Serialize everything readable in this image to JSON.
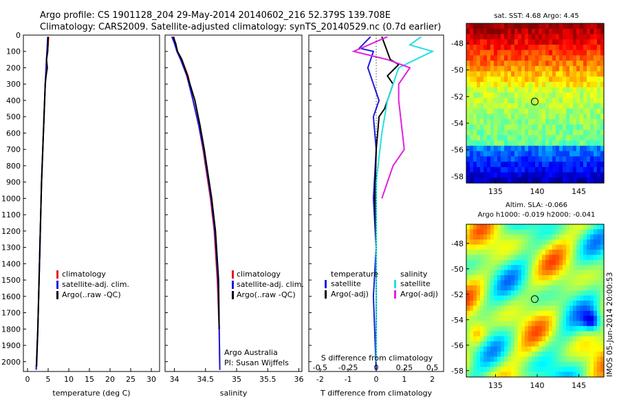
{
  "header": {
    "line1": "Argo profile: CS 1901128_204 29-May-2014 20140602_216 52.379S 139.708E",
    "line2": "Climatology: CARS2009. Satellite-adjusted climatology: synTS_20140529.nc (0.7d earlier)"
  },
  "colors": {
    "climatology": "#e8141e",
    "satellite": "#1a1ae0",
    "argo": "#000000",
    "satellite_salinity": "#22e0e0",
    "argo_salinity": "#e020e0"
  },
  "chart_data": [
    {
      "type": "line",
      "id": "temperature",
      "xlabel": "temperature (deg C)",
      "ylabel": "",
      "xlim": [
        -1,
        32
      ],
      "ylim": [
        2060,
        0
      ],
      "xticks": [
        0,
        5,
        10,
        15,
        20,
        25,
        30
      ],
      "yticks": [
        0,
        100,
        200,
        300,
        400,
        500,
        600,
        700,
        800,
        900,
        1000,
        1100,
        1200,
        1300,
        1400,
        1500,
        1600,
        1700,
        1800,
        1900,
        2000
      ],
      "legend": [
        "climatology",
        "satellite-adj. clim.",
        "Argo(..raw -QC)"
      ],
      "series": [
        {
          "name": "climatology",
          "color": "#e8141e",
          "x": [
            5.1,
            5.0,
            4.8,
            4.6,
            4.5,
            4.3,
            4.0,
            3.7,
            3.4,
            3.1,
            2.8,
            2.5,
            2.1
          ],
          "y": [
            10,
            60,
            100,
            150,
            200,
            300,
            500,
            700,
            900,
            1200,
            1500,
            1800,
            2050
          ]
        },
        {
          "name": "satellite-adj. clim.",
          "color": "#1a1ae0",
          "x": [
            4.9,
            4.8,
            4.7,
            4.6,
            4.5,
            4.3,
            4.0,
            3.7,
            3.4,
            3.1,
            2.8,
            2.5,
            2.1
          ],
          "y": [
            10,
            60,
            100,
            150,
            200,
            300,
            500,
            700,
            900,
            1200,
            1500,
            1800,
            2050
          ]
        },
        {
          "name": "Argo(..raw -QC)",
          "color": "#000000",
          "x": [
            5.0,
            4.95,
            4.9,
            4.6,
            4.8,
            4.5,
            4.3,
            4.0,
            3.7,
            3.4,
            3.1,
            2.8,
            2.5,
            2.2
          ],
          "y": [
            10,
            50,
            100,
            150,
            200,
            250,
            300,
            500,
            700,
            900,
            1200,
            1500,
            1800,
            2030
          ]
        }
      ]
    },
    {
      "type": "line",
      "id": "salinity",
      "xlabel": "salinity",
      "ylabel": "",
      "xlim": [
        33.85,
        36.05
      ],
      "ylim": [
        2060,
        0
      ],
      "xticks": [
        34,
        34.5,
        35,
        35.5,
        36
      ],
      "legend": [
        "climatology",
        "satellite-adj. clim.",
        "Argo(..raw -QC)"
      ],
      "annotation": [
        "Argo Australia",
        "PI: Susan Wijffels"
      ],
      "series": [
        {
          "name": "climatology",
          "color": "#e8141e",
          "x": [
            33.99,
            34.01,
            34.05,
            34.12,
            34.22,
            34.3,
            34.39,
            34.46,
            34.52,
            34.58,
            34.64,
            34.69,
            34.72,
            34.73
          ],
          "y": [
            10,
            50,
            100,
            150,
            250,
            400,
            550,
            700,
            850,
            1000,
            1200,
            1500,
            1800,
            2050
          ]
        },
        {
          "name": "satellite-adj. clim.",
          "color": "#1a1ae0",
          "x": [
            33.96,
            34.0,
            34.04,
            34.1,
            34.2,
            34.3,
            34.39,
            34.47,
            34.53,
            34.59,
            34.65,
            34.7,
            34.72,
            34.73
          ],
          "y": [
            10,
            50,
            100,
            150,
            250,
            400,
            550,
            700,
            850,
            1000,
            1200,
            1500,
            1800,
            2050
          ]
        },
        {
          "name": "Argo(..raw -QC)",
          "color": "#000000",
          "x": [
            33.98,
            34.02,
            34.05,
            34.12,
            34.21,
            34.33,
            34.41,
            34.48,
            34.54,
            34.6,
            34.66,
            34.71,
            34.72
          ],
          "y": [
            10,
            50,
            100,
            150,
            250,
            400,
            550,
            700,
            850,
            1000,
            1200,
            1500,
            1800
          ]
        }
      ]
    },
    {
      "type": "line",
      "id": "difference",
      "xlabel": "T difference from climatology",
      "ylabel": "",
      "x2label": "S difference from climatology",
      "xlim": [
        -2.4,
        2.4
      ],
      "ylim": [
        2060,
        0
      ],
      "xticks": [
        -2,
        -1,
        0,
        1,
        2
      ],
      "x2ticks": [
        "-0.5",
        "-0.25",
        "0",
        "0.25",
        "0.5"
      ],
      "legend_left_title": "temperature",
      "legend_right_title": "salinity",
      "legend_left": [
        "satellite",
        "Argo(-adj)"
      ],
      "legend_right": [
        "satellite",
        "Argo(-adj)"
      ],
      "series": [
        {
          "name": "satellite",
          "quantity": "temperature",
          "color": "#1a1ae0",
          "x": [
            -0.2,
            -0.6,
            -0.1,
            -0.3,
            -0.1,
            0.1,
            -0.1,
            0.0,
            -0.1,
            0.0,
            -0.1,
            0.0
          ],
          "y": [
            10,
            80,
            100,
            200,
            300,
            400,
            500,
            700,
            1000,
            1300,
            1600,
            2050
          ]
        },
        {
          "name": "Argo(-adj)",
          "quantity": "temperature",
          "color": "#000000",
          "x": [
            0.2,
            0.5,
            0.8,
            0.4,
            0.6,
            0.3,
            0.1,
            0.0,
            -0.05,
            0.0
          ],
          "y": [
            10,
            150,
            180,
            250,
            300,
            450,
            500,
            700,
            1000,
            1300
          ]
        },
        {
          "name": "satellite",
          "quantity": "salinity",
          "color": "#22e0e0",
          "x": [
            0.4,
            0.3,
            0.5,
            0.2,
            0.1,
            0.05,
            0.0,
            0.0
          ],
          "y": [
            10,
            60,
            100,
            200,
            400,
            600,
            900,
            2000
          ]
        },
        {
          "name": "Argo(-adj)",
          "quantity": "salinity",
          "color": "#e020e0",
          "x": [
            0.1,
            -0.2,
            0.1,
            0.3,
            0.2,
            0.2,
            0.25,
            0.15,
            0.05
          ],
          "y": [
            10,
            100,
            150,
            200,
            300,
            400,
            700,
            800,
            1000
          ]
        }
      ]
    },
    {
      "type": "heatmap",
      "id": "sst-map",
      "title": "sat. SST: 4.68 Argo: 4.45",
      "xticks": [
        135,
        140,
        145
      ],
      "yticks": [
        -48,
        -50,
        -52,
        -54,
        -56,
        -58
      ],
      "xlim": [
        131.5,
        148
      ],
      "ylim": [
        -58.5,
        -46.5
      ],
      "marker": {
        "lon": 139.708,
        "lat": -52.379
      },
      "palette": "jet"
    },
    {
      "type": "heatmap",
      "id": "sla-map",
      "title": "Altim. SLA: -0.066",
      "subtitle": "Argo h1000: -0.019 h2000: -0.041",
      "xticks": [
        135,
        140,
        145
      ],
      "yticks": [
        -48,
        -50,
        -52,
        -54,
        -56,
        -58
      ],
      "xlim": [
        131.5,
        148
      ],
      "ylim": [
        -58.5,
        -46.5
      ],
      "marker": {
        "lon": 139.708,
        "lat": -52.379
      },
      "palette": "jet"
    }
  ],
  "footer": {
    "stamp": "IMOS 05-Jun-2014 20:00:53"
  }
}
